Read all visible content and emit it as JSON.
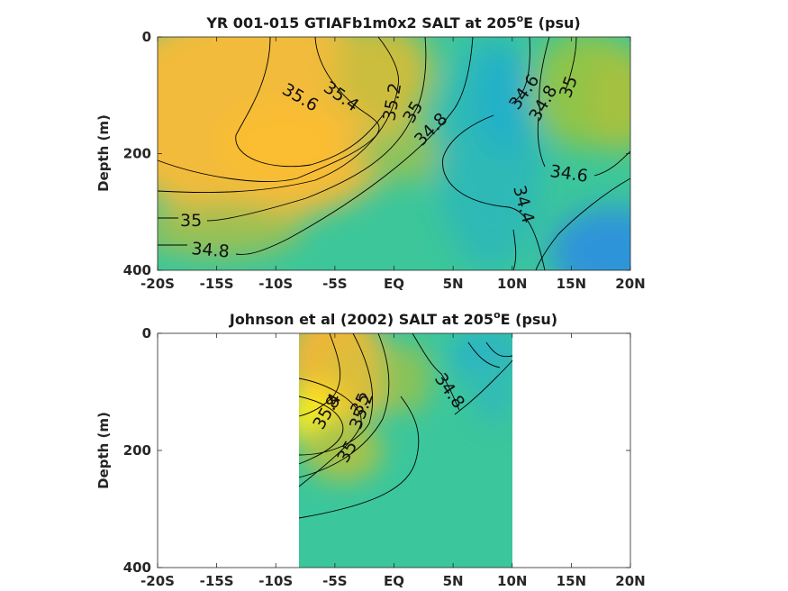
{
  "panels": [
    {
      "title_main": "YR 001-015 GTIAFb1m0x2 SALT at 205",
      "title_sup": "o",
      "title_tail": "E (psu)",
      "ylabel": "Depth (m)",
      "xticks": [
        "-20S",
        "-15S",
        "-10S",
        "-5S",
        "EQ",
        "5N",
        "10N",
        "15N",
        "20N"
      ],
      "yticks": [
        "0",
        "200",
        "400"
      ],
      "contour_labels": [
        "35.6",
        "35.4",
        "35.2",
        "35",
        "34.8",
        "34.6",
        "34.8",
        "35",
        "34.6",
        "34.4",
        "35",
        "34.8"
      ]
    },
    {
      "title_main": "Johnson et al (2002) SALT at 205",
      "title_sup": "o",
      "title_tail": "E (psu)",
      "ylabel": "Depth (m)",
      "xticks": [
        "-20S",
        "-15S",
        "-10S",
        "-5S",
        "EQ",
        "5N",
        "10N",
        "15N",
        "20N"
      ],
      "yticks": [
        "0",
        "200",
        "400"
      ],
      "contour_labels": [
        "34.8",
        "8",
        "35.2",
        "35",
        "35.4",
        "35"
      ]
    }
  ],
  "chart_data": [
    {
      "type": "heatmap",
      "variable": "SALT",
      "units": "psu",
      "title": "YR 001-015 GTIAFb1m0x2 SALT at 205oE (psu)",
      "xlabel": "",
      "ylabel": "Depth (m)",
      "xlim": [
        -20,
        20
      ],
      "ylim": [
        0,
        400
      ],
      "y_reversed": true,
      "colors": {
        "low": "#2f8fd8",
        "mid": "#35c3a0",
        "high": "#fbb533",
        "max": "#f5f214"
      },
      "contour_levels": [
        {
          "level": 35.6,
          "label": "35.6"
        },
        {
          "level": 35.4,
          "label": "35.4"
        },
        {
          "level": 35.2,
          "label": "35.2"
        },
        {
          "level": 35.0,
          "label": "35"
        },
        {
          "level": 34.8,
          "label": "34.8"
        },
        {
          "level": 34.6,
          "label": "34.6"
        },
        {
          "level": 34.4,
          "label": "34.4"
        }
      ],
      "field_samples": [
        {
          "lat": -15,
          "depth": 100,
          "salt": 35.5
        },
        {
          "lat": -8,
          "depth": 170,
          "salt": 35.7
        },
        {
          "lat": -2,
          "depth": 60,
          "salt": 35.3
        },
        {
          "lat": 0,
          "depth": 250,
          "salt": 34.9
        },
        {
          "lat": 5,
          "depth": 200,
          "salt": 34.6
        },
        {
          "lat": 10,
          "depth": 150,
          "salt": 34.45
        },
        {
          "lat": 18,
          "depth": 100,
          "salt": 35.0
        },
        {
          "lat": 18,
          "depth": 350,
          "salt": 34.3
        },
        {
          "lat": -15,
          "depth": 380,
          "salt": 34.75
        }
      ]
    },
    {
      "type": "heatmap",
      "variable": "SALT",
      "units": "psu",
      "title": "Johnson et al (2002) SALT at 205oE (psu)",
      "xlabel": "",
      "ylabel": "Depth (m)",
      "xlim": [
        -20,
        20
      ],
      "ylim": [
        0,
        400
      ],
      "y_reversed": true,
      "data_extent_lat": [
        -8,
        10
      ],
      "colors": {
        "low": "#2f8fd8",
        "mid": "#35c3a0",
        "high": "#fbb533",
        "max": "#f5f214"
      },
      "contour_levels": [
        {
          "level": 35.6
        },
        {
          "level": 35.4,
          "label": "35.4"
        },
        {
          "level": 35.2,
          "label": "35.2"
        },
        {
          "level": 35.0,
          "label": "35"
        },
        {
          "level": 34.8,
          "label": "34.8"
        }
      ],
      "field_samples": [
        {
          "lat": -7,
          "depth": 150,
          "salt": 35.8
        },
        {
          "lat": -5,
          "depth": 60,
          "salt": 35.3
        },
        {
          "lat": 0,
          "depth": 100,
          "salt": 34.95
        },
        {
          "lat": 2,
          "depth": 300,
          "salt": 34.75
        },
        {
          "lat": 8,
          "depth": 50,
          "salt": 34.5
        },
        {
          "lat": 8,
          "depth": 350,
          "salt": 34.75
        }
      ]
    }
  ]
}
